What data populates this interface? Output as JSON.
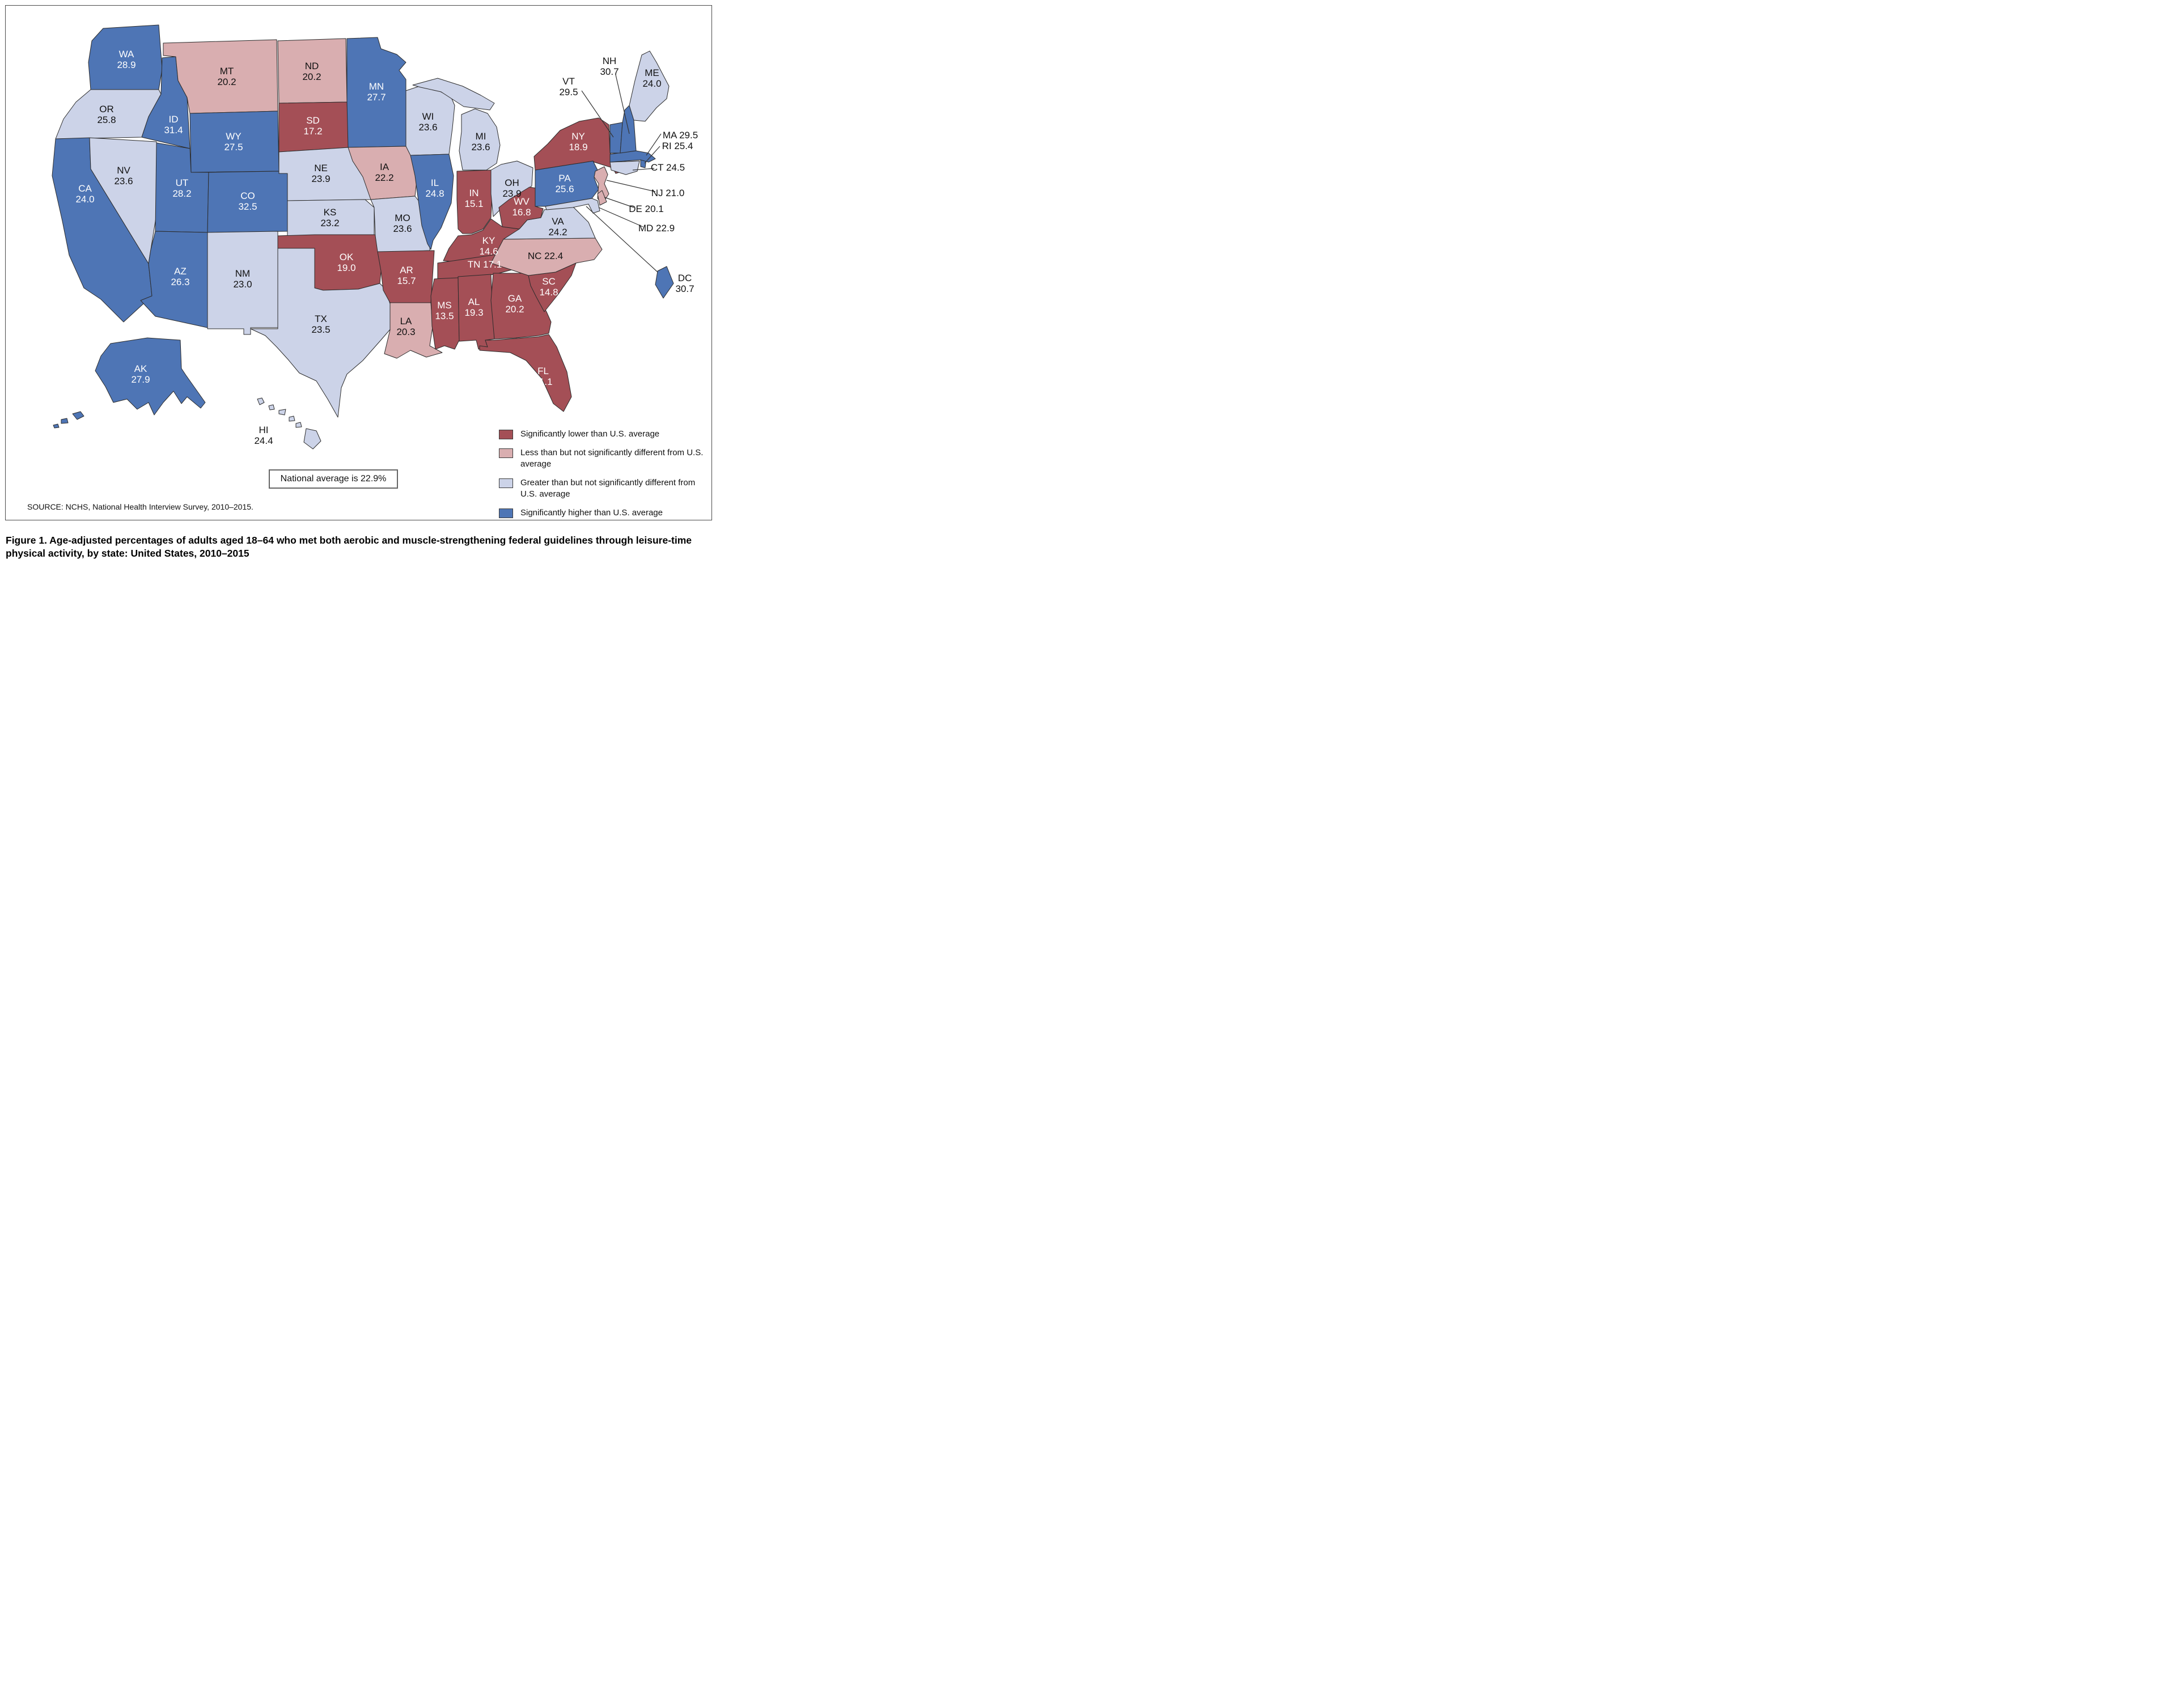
{
  "figure": {
    "caption": "Figure 1. Age-adjusted percentages of adults aged 18–64 who met both aerobic and muscle-strengthening federal guidelines through leisure-time physical activity, by state: United States, 2010–2015",
    "source": "SOURCE: NCHS, National Health Interview Survey, 2010–2015.",
    "national_average_note": "National average is 22.9%"
  },
  "legend": {
    "items": [
      {
        "category": "sig_lower",
        "color": "#a44f56",
        "label": "Significantly lower than U.S. average"
      },
      {
        "category": "lower_ns",
        "color": "#d9aeb0",
        "label": "Less than but not significantly different from U.S. average"
      },
      {
        "category": "higher_ns",
        "color": "#ccd3e8",
        "label": "Greater than but not significantly different from U.S. average"
      },
      {
        "category": "sig_higher",
        "color": "#4e75b5",
        "label": "Significantly higher than U.S. average"
      }
    ]
  },
  "chart_data": {
    "type": "choropleth",
    "title": "Age-adjusted percentages of adults aged 18–64 who met both aerobic and muscle-strengthening federal guidelines through leisure-time physical activity, by state: United States, 2010–2015",
    "unit": "percent",
    "national_average": 22.9,
    "states": [
      {
        "abbr": "WA",
        "value": 28.9,
        "category": "sig_higher"
      },
      {
        "abbr": "OR",
        "value": 25.8,
        "category": "higher_ns"
      },
      {
        "abbr": "CA",
        "value": 24.0,
        "category": "sig_higher"
      },
      {
        "abbr": "NV",
        "value": 23.6,
        "category": "higher_ns"
      },
      {
        "abbr": "ID",
        "value": 31.4,
        "category": "sig_higher"
      },
      {
        "abbr": "MT",
        "value": 20.2,
        "category": "lower_ns"
      },
      {
        "abbr": "WY",
        "value": 27.5,
        "category": "sig_higher"
      },
      {
        "abbr": "UT",
        "value": 28.2,
        "category": "sig_higher"
      },
      {
        "abbr": "CO",
        "value": 32.5,
        "category": "sig_higher"
      },
      {
        "abbr": "AZ",
        "value": 26.3,
        "category": "sig_higher"
      },
      {
        "abbr": "NM",
        "value": 23.0,
        "category": "higher_ns"
      },
      {
        "abbr": "ND",
        "value": 20.2,
        "category": "lower_ns"
      },
      {
        "abbr": "SD",
        "value": 17.2,
        "category": "sig_lower"
      },
      {
        "abbr": "NE",
        "value": 23.9,
        "category": "higher_ns"
      },
      {
        "abbr": "KS",
        "value": 23.2,
        "category": "higher_ns"
      },
      {
        "abbr": "OK",
        "value": 19.0,
        "category": "sig_lower"
      },
      {
        "abbr": "TX",
        "value": 23.5,
        "category": "higher_ns"
      },
      {
        "abbr": "MN",
        "value": 27.7,
        "category": "sig_higher"
      },
      {
        "abbr": "IA",
        "value": 22.2,
        "category": "lower_ns"
      },
      {
        "abbr": "MO",
        "value": 23.6,
        "category": "higher_ns"
      },
      {
        "abbr": "AR",
        "value": 15.7,
        "category": "sig_lower"
      },
      {
        "abbr": "LA",
        "value": 20.3,
        "category": "lower_ns"
      },
      {
        "abbr": "WI",
        "value": 23.6,
        "category": "higher_ns"
      },
      {
        "abbr": "IL",
        "value": 24.8,
        "category": "sig_higher"
      },
      {
        "abbr": "MI",
        "value": 23.6,
        "category": "higher_ns"
      },
      {
        "abbr": "IN",
        "value": 15.1,
        "category": "sig_lower"
      },
      {
        "abbr": "OH",
        "value": 23.9,
        "category": "higher_ns"
      },
      {
        "abbr": "KY",
        "value": 14.6,
        "category": "sig_lower"
      },
      {
        "abbr": "TN",
        "value": 17.1,
        "category": "sig_lower"
      },
      {
        "abbr": "MS",
        "value": 13.5,
        "category": "sig_lower"
      },
      {
        "abbr": "AL",
        "value": 19.3,
        "category": "sig_lower"
      },
      {
        "abbr": "GA",
        "value": 20.2,
        "category": "sig_lower"
      },
      {
        "abbr": "FL",
        "value": 21.1,
        "category": "sig_lower"
      },
      {
        "abbr": "SC",
        "value": 14.8,
        "category": "sig_lower"
      },
      {
        "abbr": "NC",
        "value": 22.4,
        "category": "lower_ns"
      },
      {
        "abbr": "VA",
        "value": 24.2,
        "category": "higher_ns"
      },
      {
        "abbr": "WV",
        "value": 16.8,
        "category": "sig_lower"
      },
      {
        "abbr": "PA",
        "value": 25.6,
        "category": "sig_higher"
      },
      {
        "abbr": "NY",
        "value": 18.9,
        "category": "sig_lower"
      },
      {
        "abbr": "NJ",
        "value": 21.0,
        "category": "lower_ns"
      },
      {
        "abbr": "DE",
        "value": 20.1,
        "category": "lower_ns"
      },
      {
        "abbr": "MD",
        "value": 22.9,
        "category": "higher_ns"
      },
      {
        "abbr": "CT",
        "value": 24.5,
        "category": "higher_ns"
      },
      {
        "abbr": "RI",
        "value": 25.4,
        "category": "sig_higher"
      },
      {
        "abbr": "MA",
        "value": 29.5,
        "category": "sig_higher"
      },
      {
        "abbr": "VT",
        "value": 29.5,
        "category": "sig_higher"
      },
      {
        "abbr": "NH",
        "value": 30.7,
        "category": "sig_higher"
      },
      {
        "abbr": "ME",
        "value": 24.0,
        "category": "higher_ns"
      },
      {
        "abbr": "DC",
        "value": 30.7,
        "category": "sig_higher"
      },
      {
        "abbr": "AK",
        "value": 27.9,
        "category": "sig_higher"
      },
      {
        "abbr": "HI",
        "value": 24.4,
        "category": "higher_ns"
      }
    ]
  }
}
